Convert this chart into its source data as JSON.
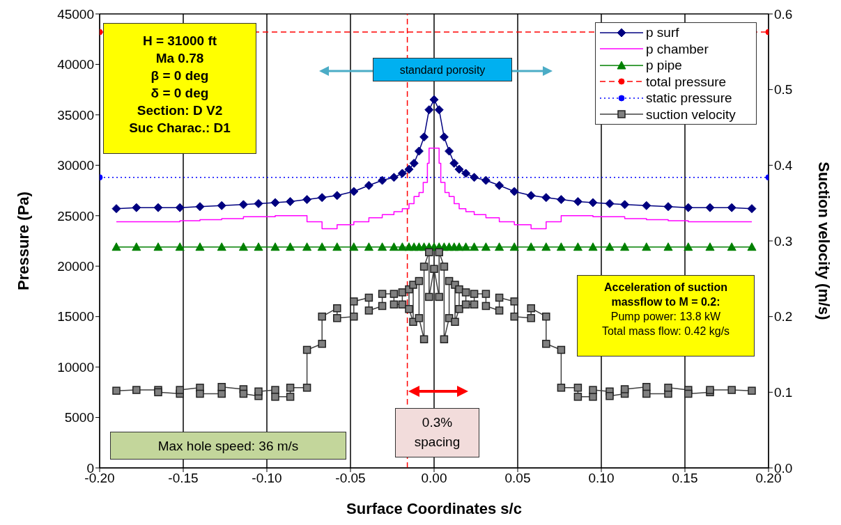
{
  "chart_data": {
    "type": "line",
    "xlabel": "Surface Coordinates s/c",
    "ylabel": "Pressure (Pa)",
    "y2label": "Suction velocity (m/s)",
    "xlim": [
      -0.2,
      0.2
    ],
    "xticks": [
      {
        "value": -0.2,
        "label": "-0.20"
      },
      {
        "value": -0.15,
        "label": "-0.15"
      },
      {
        "value": -0.1,
        "label": "-0.10"
      },
      {
        "value": -0.05,
        "label": "-0.05"
      },
      {
        "value": 0,
        "label": "0.00"
      },
      {
        "value": 0.05,
        "label": "0.05"
      },
      {
        "value": 0.1,
        "label": "0.10"
      },
      {
        "value": 0.15,
        "label": "0.15"
      },
      {
        "value": 0.2,
        "label": "0.20"
      }
    ],
    "ylim": [
      0,
      45000
    ],
    "yticks": [
      0,
      5000,
      10000,
      15000,
      20000,
      25000,
      30000,
      35000,
      40000,
      45000
    ],
    "y2lim": [
      0,
      0.6
    ],
    "y2ticks": [
      {
        "value": 0,
        "label": "0.0"
      },
      0.1,
      0.2,
      0.3,
      0.4,
      0.5,
      0.6
    ],
    "grid": true,
    "legend": "top right",
    "ref_lines": [
      {
        "axis": "x",
        "value": -0.016,
        "color": "#ff0000",
        "line_style": "dashed"
      }
    ],
    "annotations": [
      "H = 31000 ft",
      "Ma 0.78",
      "β = 0 deg",
      "δ = 0 deg",
      "Section: D V2",
      "Suc Charac.: D1",
      "standard porosity",
      "Acceleration of suction massflow to M = 0.2:",
      "Pump power: 13.8 kW",
      "Total mass flow: 0.42 kg/s",
      "Max hole speed: 36 m/s",
      "0.3% spacing"
    ],
    "series": [
      {
        "name": "p surf",
        "color": "#000080",
        "marker": "diamond",
        "x": [
          -0.19,
          -0.178,
          -0.165,
          -0.152,
          -0.14,
          -0.127,
          -0.114,
          -0.105,
          -0.095,
          -0.086,
          -0.076,
          -0.067,
          -0.058,
          -0.048,
          -0.039,
          -0.031,
          -0.024,
          -0.019,
          -0.015,
          -0.012,
          -0.009,
          -0.006,
          -0.003,
          0,
          0.003,
          0.006,
          0.009,
          0.012,
          0.015,
          0.019,
          0.024,
          0.031,
          0.039,
          0.048,
          0.058,
          0.067,
          0.076,
          0.086,
          0.095,
          0.105,
          0.114,
          0.127,
          0.14,
          0.152,
          0.165,
          0.178,
          0.19
        ],
        "values": [
          25700,
          25800,
          25800,
          25800,
          25900,
          26000,
          26100,
          26200,
          26300,
          26400,
          26600,
          26800,
          27000,
          27400,
          28000,
          28500,
          28800,
          29200,
          29600,
          30200,
          31400,
          32800,
          35500,
          36500,
          35500,
          32800,
          31400,
          30200,
          29600,
          29200,
          28800,
          28500,
          28000,
          27400,
          27000,
          26800,
          26600,
          26400,
          26300,
          26200,
          26100,
          26000,
          25900,
          25800,
          25800,
          25800,
          25700
        ]
      },
      {
        "name": "p chamber",
        "color": "#ff00ff",
        "type": "step",
        "marker": "none",
        "x": [
          -0.19,
          -0.152,
          -0.14,
          -0.127,
          -0.114,
          -0.095,
          -0.076,
          -0.067,
          -0.058,
          -0.048,
          -0.039,
          -0.031,
          -0.024,
          -0.019,
          -0.015,
          -0.012,
          -0.009,
          -0.0065,
          -0.004,
          -0.003,
          0.003,
          0.004,
          0.0065,
          0.009,
          0.012,
          0.015,
          0.019,
          0.024,
          0.031,
          0.039,
          0.048,
          0.058,
          0.067,
          0.076,
          0.095,
          0.114,
          0.127,
          0.14,
          0.152,
          0.19
        ],
        "values": [
          24400,
          24500,
          24600,
          24700,
          24900,
          25000,
          24400,
          23700,
          24100,
          24400,
          24800,
          25100,
          25400,
          25700,
          26200,
          26900,
          27300,
          28300,
          30200,
          31700,
          30200,
          28300,
          27300,
          26900,
          26200,
          25700,
          25400,
          25100,
          24800,
          24400,
          24100,
          23700,
          24400,
          25000,
          24900,
          24700,
          24600,
          24500,
          24400,
          24400
        ]
      },
      {
        "name": "p pipe",
        "color": "#008000",
        "marker": "triangle",
        "x": [
          -0.19,
          -0.178,
          -0.165,
          -0.152,
          -0.14,
          -0.127,
          -0.114,
          -0.105,
          -0.095,
          -0.086,
          -0.076,
          -0.067,
          -0.058,
          -0.048,
          -0.039,
          -0.031,
          -0.024,
          -0.019,
          -0.015,
          -0.012,
          -0.009,
          -0.006,
          -0.003,
          0,
          0.003,
          0.006,
          0.009,
          0.012,
          0.015,
          0.019,
          0.024,
          0.031,
          0.039,
          0.048,
          0.058,
          0.067,
          0.076,
          0.086,
          0.095,
          0.105,
          0.114,
          0.127,
          0.14,
          0.152,
          0.165,
          0.178,
          0.19
        ],
        "values": [
          21900,
          21900,
          21900,
          21900,
          21900,
          21900,
          21900,
          21900,
          21900,
          21900,
          21900,
          21900,
          21900,
          21900,
          21900,
          21900,
          21900,
          21900,
          21900,
          21900,
          21900,
          21900,
          21900,
          21900,
          21900,
          21900,
          21900,
          21900,
          21900,
          21900,
          21900,
          21900,
          21900,
          21900,
          21900,
          21900,
          21900,
          21900,
          21900,
          21900,
          21900,
          21900,
          21900,
          21900,
          21900,
          21900,
          21900
        ]
      },
      {
        "name": "total pressure",
        "color": "#ff0000",
        "marker": "circle",
        "line_style": "dashed",
        "x": [
          -0.2,
          0.2
        ],
        "values": [
          43200,
          43200
        ]
      },
      {
        "name": "static pressure",
        "color": "#0000ff",
        "marker": "circle",
        "line_style": "dotted",
        "x": [
          -0.2,
          0.2
        ],
        "values": [
          28800,
          28800
        ]
      },
      {
        "name": "suction velocity",
        "color": "#404040",
        "marker": "square",
        "axis": "y2",
        "x": [
          -0.19,
          -0.178,
          -0.165,
          -0.165,
          -0.152,
          -0.152,
          -0.14,
          -0.14,
          -0.127,
          -0.127,
          -0.114,
          -0.114,
          -0.105,
          -0.105,
          -0.095,
          -0.095,
          -0.086,
          -0.086,
          -0.076,
          -0.076,
          -0.067,
          -0.067,
          -0.058,
          -0.058,
          -0.048,
          -0.048,
          -0.039,
          -0.039,
          -0.031,
          -0.031,
          -0.024,
          -0.024,
          -0.019,
          -0.019,
          -0.015,
          -0.015,
          -0.0125,
          -0.0125,
          -0.009,
          -0.009,
          -0.006,
          -0.006,
          -0.003,
          -0.003,
          0,
          0.003,
          0.003,
          0.006,
          0.006,
          0.009,
          0.009,
          0.0125,
          0.0125,
          0.015,
          0.015,
          0.019,
          0.019,
          0.024,
          0.024,
          0.031,
          0.031,
          0.039,
          0.039,
          0.048,
          0.048,
          0.058,
          0.058,
          0.067,
          0.067,
          0.076,
          0.076,
          0.086,
          0.086,
          0.095,
          0.095,
          0.105,
          0.105,
          0.114,
          0.114,
          0.127,
          0.127,
          0.14,
          0.14,
          0.152,
          0.152,
          0.165,
          0.165,
          0.178,
          0.19
        ],
        "values": [
          0.102,
          0.103,
          0.103,
          0.1,
          0.098,
          0.103,
          0.106,
          0.098,
          0.098,
          0.107,
          0.104,
          0.098,
          0.095,
          0.101,
          0.103,
          0.094,
          0.094,
          0.106,
          0.106,
          0.156,
          0.164,
          0.2,
          0.211,
          0.198,
          0.2,
          0.22,
          0.225,
          0.208,
          0.214,
          0.23,
          0.23,
          0.216,
          0.216,
          0.232,
          0.236,
          0.21,
          0.193,
          0.242,
          0.247,
          0.198,
          0.17,
          0.266,
          0.285,
          0.226,
          0.263,
          0.226,
          0.285,
          0.266,
          0.17,
          0.198,
          0.247,
          0.242,
          0.193,
          0.21,
          0.236,
          0.232,
          0.216,
          0.216,
          0.23,
          0.23,
          0.214,
          0.208,
          0.225,
          0.22,
          0.2,
          0.198,
          0.211,
          0.2,
          0.164,
          0.156,
          0.106,
          0.106,
          0.094,
          0.094,
          0.103,
          0.101,
          0.095,
          0.098,
          0.104,
          0.107,
          0.098,
          0.098,
          0.106,
          0.103,
          0.098,
          0.1,
          0.103,
          0.103,
          0.102
        ]
      }
    ]
  }
}
